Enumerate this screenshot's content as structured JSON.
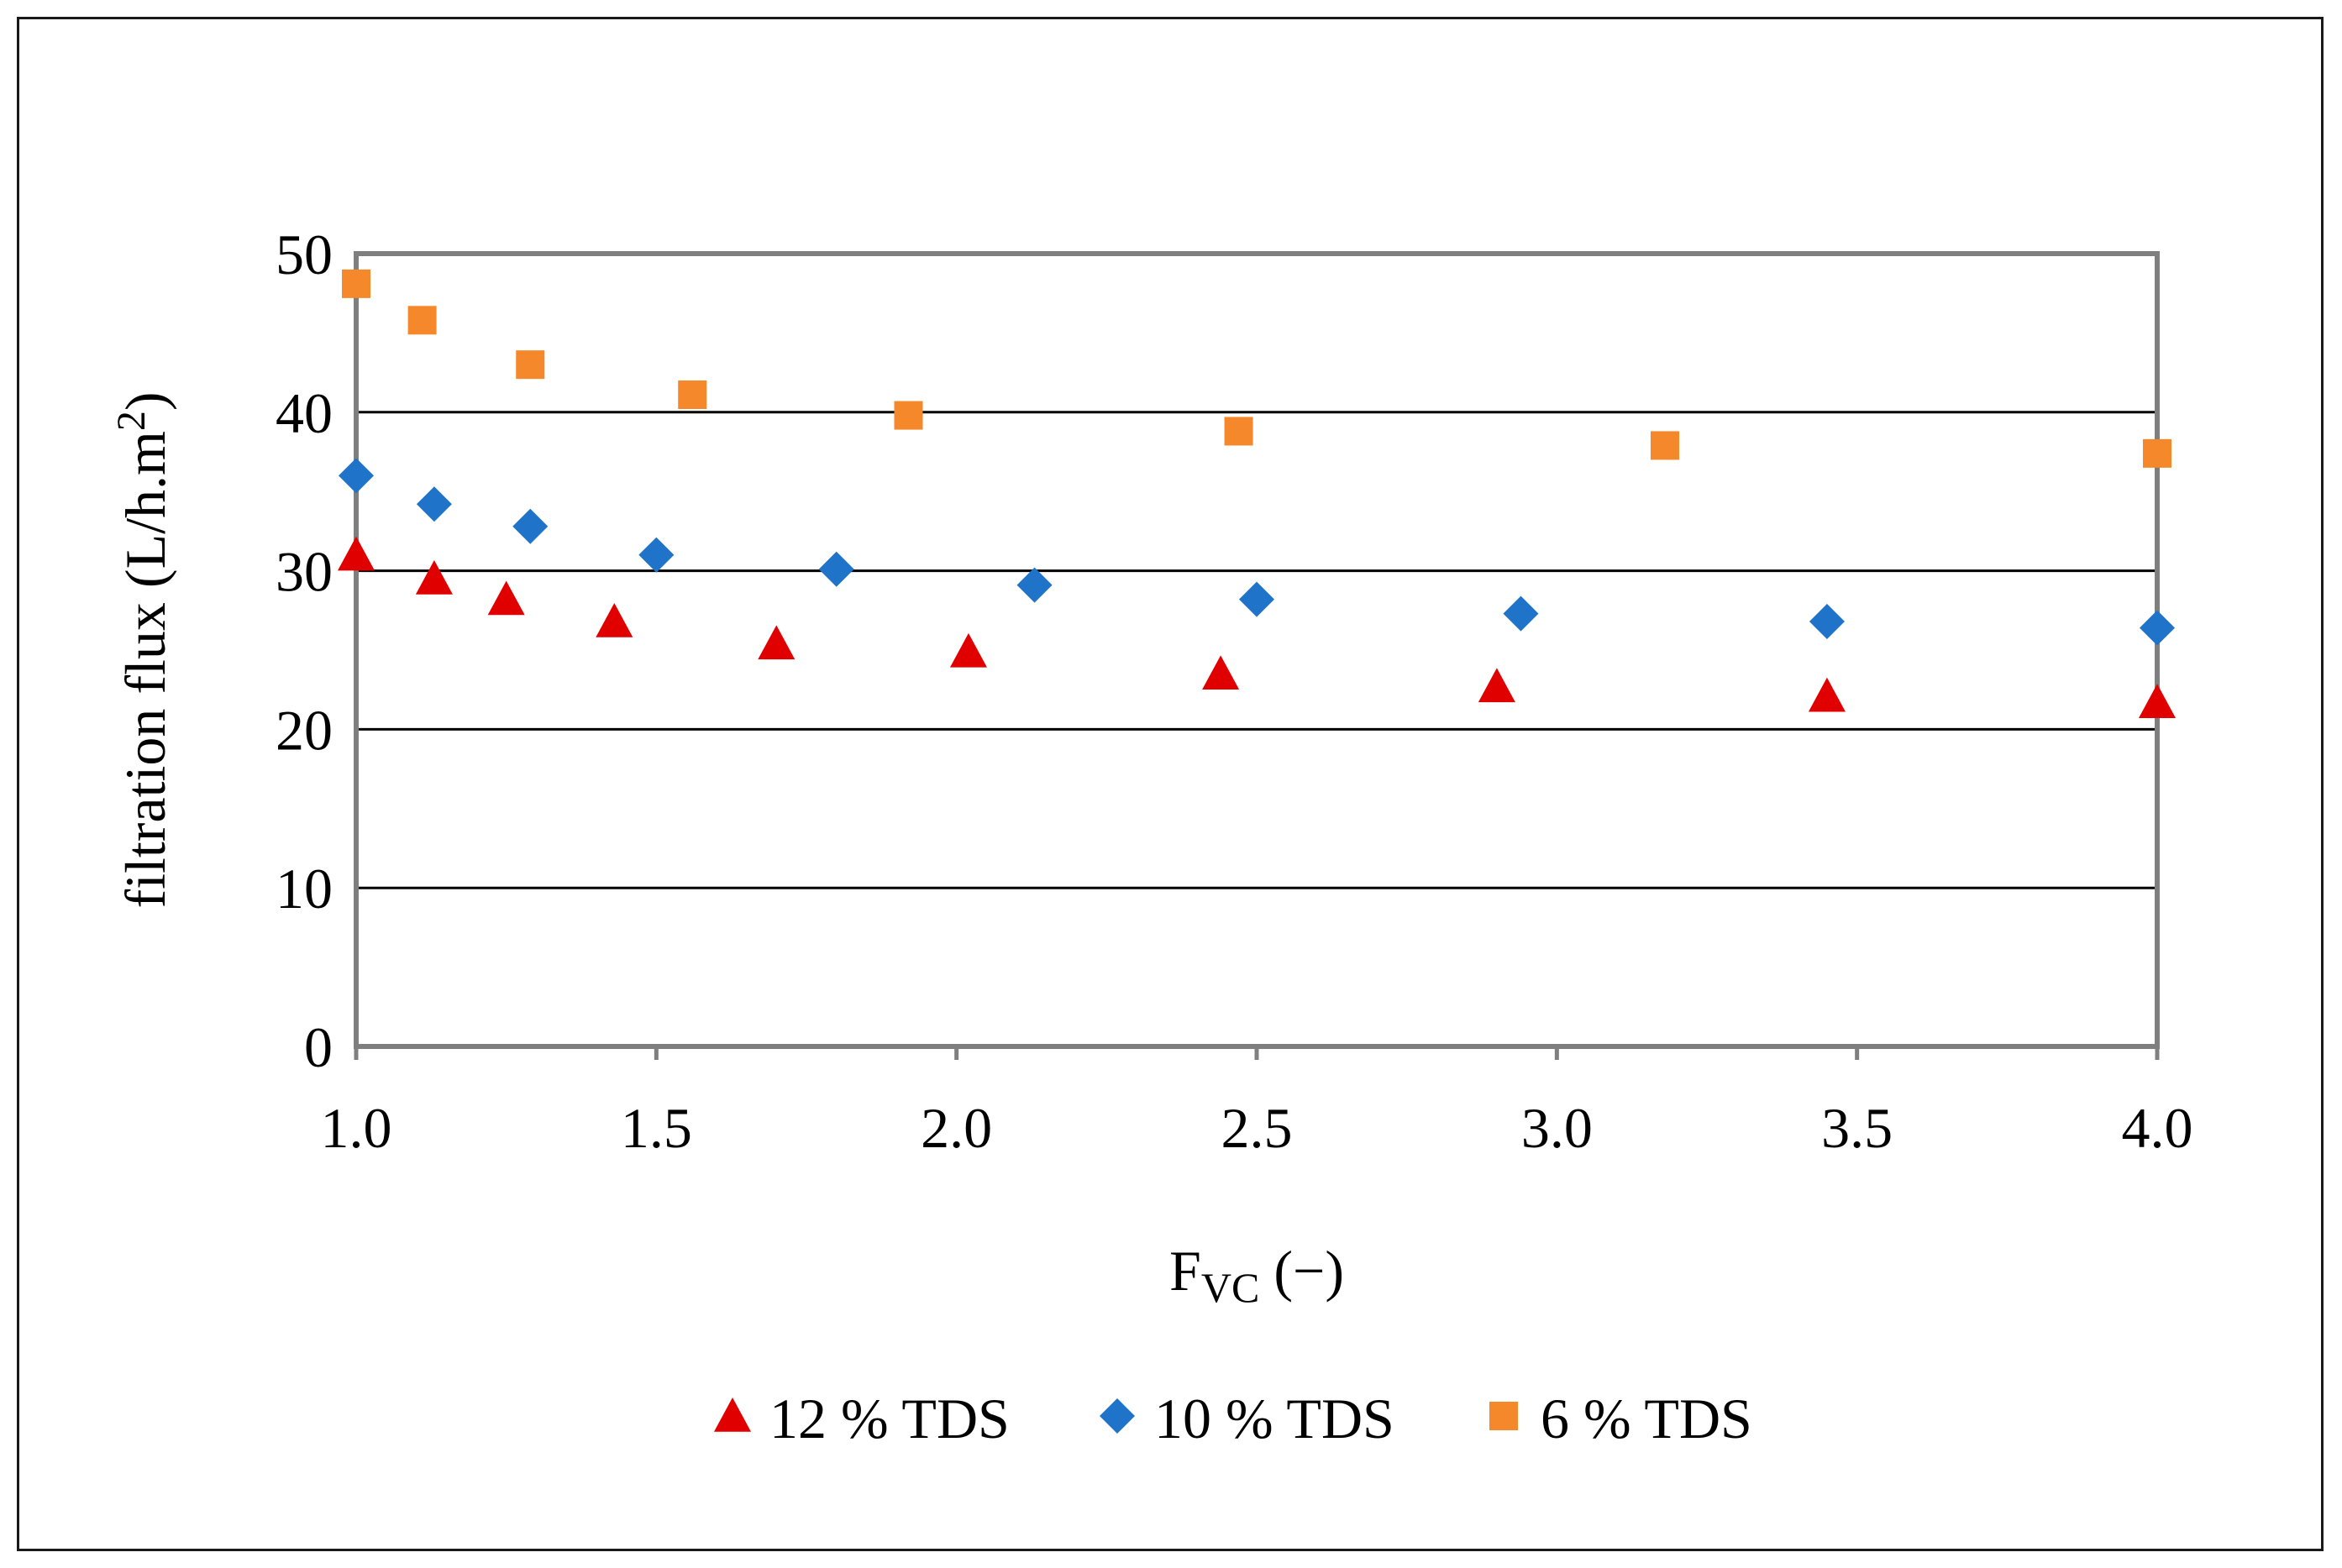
{
  "chart_data": {
    "type": "scatter",
    "title": "",
    "xlabel_main": "F",
    "xlabel_sub": "VC",
    "xlabel_suffix": " (−)",
    "ylabel_main": "filtration flux (L/h.m",
    "ylabel_sup": "2",
    "ylabel_close": ")",
    "xlim": [
      1.0,
      4.0
    ],
    "ylim": [
      0,
      50
    ],
    "x_ticks": [
      "1.0",
      "1.5",
      "2.0",
      "2.5",
      "3.0",
      "3.5",
      "4.0"
    ],
    "y_ticks": [
      "0",
      "10",
      "20",
      "30",
      "40",
      "50"
    ],
    "grid": "horizontal",
    "legend_position": "bottom",
    "series": [
      {
        "name": "12 % TDS",
        "marker": "triangle",
        "color": "#e00000",
        "x": [
          1.0,
          1.13,
          1.25,
          1.43,
          1.7,
          2.02,
          2.44,
          2.9,
          3.45,
          4.0
        ],
        "y": [
          31.0,
          29.5,
          28.2,
          26.8,
          25.4,
          24.9,
          23.5,
          22.7,
          22.1,
          21.7
        ]
      },
      {
        "name": "10 % TDS",
        "marker": "diamond",
        "color": "#1f73c9",
        "x": [
          1.0,
          1.13,
          1.29,
          1.5,
          1.8,
          2.13,
          2.5,
          2.94,
          3.45,
          4.0
        ],
        "y": [
          36.0,
          34.2,
          32.8,
          31.0,
          30.1,
          29.1,
          28.2,
          27.3,
          26.8,
          26.4
        ]
      },
      {
        "name": "6 % TDS",
        "marker": "square",
        "color": "#f5882a",
        "x": [
          1.0,
          1.11,
          1.29,
          1.56,
          1.92,
          2.47,
          3.18,
          4.0
        ],
        "y": [
          48.1,
          45.8,
          43.0,
          41.1,
          39.8,
          38.8,
          37.9,
          37.4
        ]
      }
    ]
  }
}
